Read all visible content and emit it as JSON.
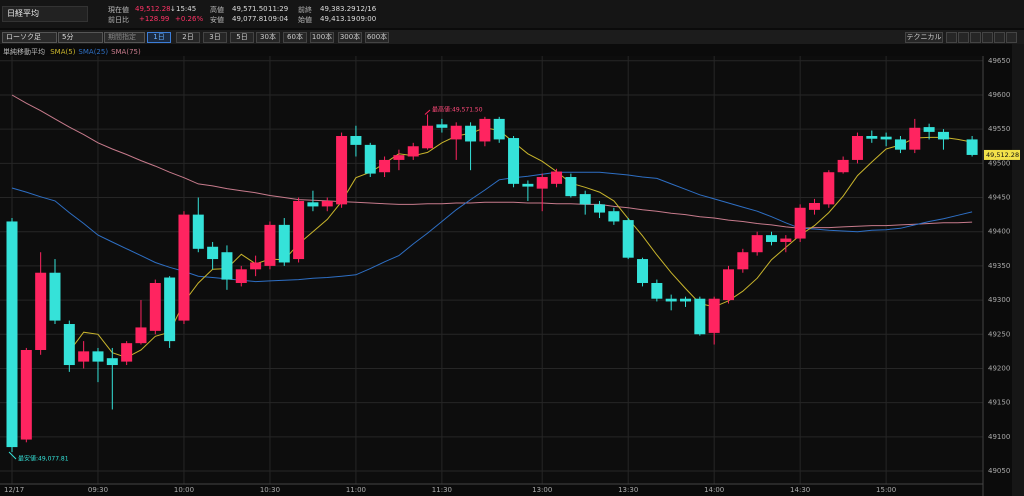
{
  "header": {
    "title": "日経平均",
    "row1": [
      [
        "現在値",
        "49,512.28",
        "↓",
        "15:45"
      ],
      [
        "高値",
        "49,571.50",
        "11:29"
      ],
      [
        "前終",
        "49,383.29",
        "12/16"
      ]
    ],
    "row2": [
      [
        "前日比",
        "+128.99",
        "+0.26%"
      ],
      [
        "安値",
        "49,077.81",
        "09:04"
      ],
      [
        "始値",
        "49,413.19",
        "09:00"
      ]
    ]
  },
  "toolbar": {
    "selects": [
      "ローソク足",
      "5分",
      "期間指定"
    ],
    "ranges": [
      "1日",
      "2日",
      "3日",
      "5日",
      "30本",
      "60本",
      "100本",
      "300本",
      "600本"
    ],
    "selected": "1日",
    "technical": "テクニカル"
  },
  "chart_data": {
    "type": "candlestick",
    "legend_title": "単純移動平均",
    "high_annotation": "最高値:49,571.50",
    "low_annotation": "最安値:49,077.81",
    "last_label": "49,512.28",
    "categories": [
      "12/17",
      null,
      null,
      null,
      null,
      null,
      "09:30",
      null,
      null,
      null,
      null,
      null,
      "10:00",
      null,
      null,
      null,
      null,
      null,
      "10:30",
      null,
      null,
      null,
      null,
      null,
      "11:00",
      null,
      null,
      null,
      null,
      null,
      "11:30",
      null,
      null,
      null,
      null,
      null,
      null,
      "13:00",
      null,
      null,
      null,
      null,
      null,
      "13:30",
      null,
      null,
      null,
      null,
      null,
      "14:00",
      null,
      null,
      null,
      null,
      null,
      "14:30",
      null,
      null,
      null,
      null,
      null,
      "15:00",
      null,
      null,
      null,
      null,
      null,
      null
    ],
    "open": [
      49415,
      49096,
      49227,
      49340,
      49265,
      49210,
      49225,
      49215,
      49210,
      49237,
      49255,
      49333,
      49270,
      49425,
      49378,
      49370,
      49325,
      49345,
      49350,
      49410,
      49360,
      49443,
      49437,
      49440,
      49540,
      49527,
      49487,
      49505,
      49510,
      49522,
      49557,
      49535,
      49555,
      49532,
      49565,
      49537,
      49470,
      49463,
      49470,
      49480,
      49455,
      49440,
      49430,
      49417,
      49360,
      49325,
      49302,
      49302,
      49302,
      49252,
      49300,
      49345,
      49370,
      49395,
      49385,
      49390,
      49432,
      49440,
      49487,
      49505,
      49540,
      49539,
      49535,
      49520,
      49553,
      49546,
      null,
      49535
    ],
    "high": [
      49420,
      49230,
      49370,
      49360,
      49270,
      49240,
      49230,
      49230,
      49240,
      49300,
      49330,
      49335,
      49430,
      49450,
      49385,
      49380,
      49350,
      49365,
      49415,
      49420,
      49450,
      49460,
      49450,
      49545,
      49555,
      49530,
      49510,
      49520,
      49530,
      49571.5,
      49565,
      49560,
      49560,
      49568,
      49568,
      49540,
      49475,
      49485,
      49492,
      49485,
      49460,
      49445,
      49435,
      49420,
      49362,
      49330,
      49308,
      49305,
      49305,
      49305,
      49350,
      49375,
      49400,
      49400,
      49395,
      49440,
      49448,
      49490,
      49510,
      49545,
      49548,
      49545,
      49540,
      49565,
      49558,
      49550,
      null,
      49540
    ],
    "low": [
      49077.81,
      49092,
      49220,
      49265,
      49195,
      49200,
      49180,
      49140,
      49205,
      49235,
      49250,
      49230,
      49265,
      49370,
      49345,
      49315,
      49320,
      49335,
      49345,
      49350,
      49355,
      49430,
      49430,
      49435,
      49510,
      49480,
      49480,
      49490,
      49505,
      49520,
      49545,
      49505,
      49490,
      49525,
      49530,
      49465,
      49445,
      49430,
      49465,
      49450,
      49425,
      49420,
      49410,
      49360,
      49320,
      49298,
      49285,
      49290,
      49248,
      49235,
      49295,
      49340,
      49365,
      49380,
      49370,
      49385,
      49425,
      49435,
      49485,
      49500,
      49530,
      49525,
      49515,
      49515,
      49535,
      49520,
      null,
      49510
    ],
    "close": [
      49085,
      49227,
      49340,
      49270,
      49205,
      49225,
      49210,
      49205,
      49237,
      49260,
      49325,
      49240,
      49425,
      49375,
      49360,
      49330,
      49345,
      49355,
      49410,
      49355,
      49445,
      49437,
      49445,
      49540,
      49527,
      49485,
      49505,
      49512,
      49525,
      49555,
      49552,
      49555,
      49532,
      49565,
      49535,
      49470,
      49466,
      49480,
      49488,
      49452,
      49440,
      49428,
      49415,
      49362,
      49325,
      49302,
      49298,
      49298,
      49250,
      49302,
      49345,
      49370,
      49395,
      49385,
      49390,
      49435,
      49442,
      49487,
      49505,
      49540,
      49536,
      49535,
      49520,
      49552,
      49546,
      49535,
      null,
      49512.28
    ],
    "series": [
      {
        "name": "SMA(5)",
        "color": "#c9b52c",
        "values": [
          null,
          null,
          null,
          null,
          49225,
          49253,
          49250,
          49223,
          49216,
          49227,
          49247,
          49253,
          49297,
          49325,
          49345,
          49346,
          49367,
          49353,
          49360,
          49359,
          49382,
          49400,
          49418,
          49444,
          49479,
          49487,
          49500,
          49514,
          49511,
          49516,
          49530,
          49540,
          49544,
          49552,
          49548,
          49531,
          49514,
          49503,
          49488,
          49471,
          49465,
          49458,
          49445,
          49419,
          49394,
          49366,
          49340,
          49317,
          49295,
          49290,
          49299,
          49313,
          49332,
          49359,
          49377,
          49395,
          49409,
          49428,
          49452,
          49482,
          49502,
          49521,
          49527,
          49537,
          49538,
          49538,
          49535,
          49531
        ]
      },
      {
        "name": "SMA(25)",
        "color": "#2e6fc4",
        "values": [
          49464,
          49458,
          49451,
          49445,
          49428,
          49412,
          49395,
          49385,
          49375,
          49365,
          49355,
          49348,
          49342,
          49335,
          49333,
          49331,
          49329,
          49327,
          49328,
          49329,
          49330,
          49332,
          49333,
          49335,
          49337,
          49346,
          49356,
          49365,
          49382,
          49398,
          49415,
          49432,
          49447,
          49461,
          49476,
          49479,
          49481,
          49484,
          49487,
          49487,
          49487,
          49487,
          49485,
          49483,
          49480,
          49478,
          49470,
          49462,
          49454,
          49448,
          49442,
          49436,
          49430,
          49422,
          49413,
          49405,
          49404,
          49402,
          49401,
          49400,
          49402,
          49403,
          49405,
          49410,
          49415,
          49419,
          49424,
          49429
        ]
      },
      {
        "name": "SMA(75)",
        "color": "#c77b8c",
        "values": [
          49600,
          49588,
          49577,
          49565,
          49553,
          49542,
          49530,
          49521,
          49513,
          49504,
          49496,
          49487,
          49479,
          49470,
          49467,
          49463,
          49460,
          49457,
          49453,
          49450,
          49447,
          49446,
          49445,
          49444,
          49443,
          49442,
          49441,
          49440,
          49440,
          49441,
          49441,
          49442,
          49442,
          49443,
          49443,
          49443,
          49442,
          49442,
          49441,
          49441,
          49440,
          49440,
          49437,
          49435,
          49432,
          49430,
          49427,
          49425,
          49422,
          49420,
          49417,
          49415,
          49412,
          49410,
          49407,
          49405,
          49406,
          49406,
          49407,
          49408,
          49409,
          49409,
          49410,
          49411,
          49412,
          49413,
          49413,
          49414
        ]
      }
    ],
    "up_color": "#ff2460",
    "down_color": "#35e2d9",
    "ylim": [
      49031,
      49657
    ],
    "yticks": [
      49050,
      49100,
      49150,
      49200,
      49250,
      49300,
      49350,
      49400,
      49450,
      49500,
      49550,
      49600,
      49650
    ],
    "grid": true
  }
}
